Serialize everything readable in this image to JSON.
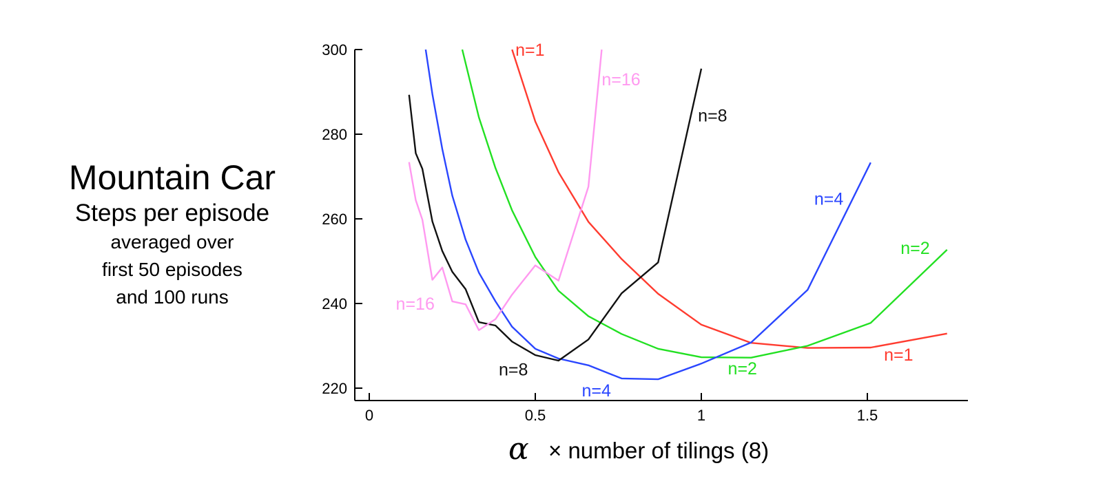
{
  "side_title": {
    "main": "Mountain Car",
    "sub": "Steps per episode",
    "line1": "averaged over",
    "line2": "first 50 episodes",
    "line3": "and 100 runs"
  },
  "chart_data": {
    "type": "line",
    "title": "Mountain Car",
    "ylabel": "Steps per episode averaged over first 50 episodes and 100 runs",
    "xlabel_symbol": "α",
    "xlabel_text": "× number of tilings (8)",
    "xlim": [
      0,
      1.8
    ],
    "ylim": [
      218,
      300
    ],
    "x_ticks": [
      {
        "v": 0,
        "label": "0"
      },
      {
        "v": 0.5,
        "label": "0.5"
      },
      {
        "v": 1,
        "label": "1"
      },
      {
        "v": 1.5,
        "label": "1.5"
      }
    ],
    "y_ticks": [
      {
        "v": 220,
        "label": "220"
      },
      {
        "v": 240,
        "label": "240"
      },
      {
        "v": 260,
        "label": "260"
      },
      {
        "v": 280,
        "label": "280"
      },
      {
        "v": 300,
        "label": "300"
      }
    ],
    "grid": false,
    "series": [
      {
        "name": "n=1",
        "color": "#ff3b2f",
        "x": [
          0.43,
          0.5,
          0.57,
          0.66,
          0.76,
          0.87,
          1.0,
          1.15,
          1.32,
          1.51,
          1.74
        ],
        "y": [
          300,
          283,
          271,
          259.3,
          250.5,
          242.3,
          235,
          230.7,
          229.5,
          229.6,
          232.9
        ],
        "labels": [
          {
            "text": "n=1",
            "x": 0.44,
            "y": 300
          },
          {
            "text": "n=1",
            "x": 1.55,
            "y": 228
          }
        ]
      },
      {
        "name": "n=2",
        "color": "#22e022",
        "x": [
          0.28,
          0.33,
          0.38,
          0.43,
          0.5,
          0.57,
          0.66,
          0.76,
          0.87,
          1.0,
          1.15,
          1.32,
          1.51,
          1.74
        ],
        "y": [
          300,
          284,
          272,
          262,
          251,
          243,
          237,
          232.8,
          229.3,
          227.3,
          227.2,
          230,
          235.4,
          252.7
        ],
        "labels": [
          {
            "text": "n=2",
            "x": 1.08,
            "y": 224.7
          },
          {
            "text": "n=2",
            "x": 1.6,
            "y": 253.2
          }
        ]
      },
      {
        "name": "n=4",
        "color": "#2a46ff",
        "x": [
          0.17,
          0.19,
          0.22,
          0.25,
          0.29,
          0.33,
          0.38,
          0.43,
          0.5,
          0.57,
          0.66,
          0.76,
          0.87,
          1.0,
          1.15,
          1.32,
          1.51
        ],
        "y": [
          300,
          289.5,
          276.5,
          265.5,
          255.1,
          247.3,
          240.5,
          234.5,
          229.3,
          227,
          225.4,
          222.3,
          222.1,
          225.8,
          230.8,
          243.2,
          273.3
        ],
        "labels": [
          {
            "text": "n=4",
            "x": 0.64,
            "y": 219.5
          },
          {
            "text": "n=4",
            "x": 1.34,
            "y": 264.8
          }
        ]
      },
      {
        "name": "n=8",
        "color": "#111111",
        "x": [
          0.12,
          0.14,
          0.16,
          0.19,
          0.22,
          0.25,
          0.29,
          0.33,
          0.38,
          0.43,
          0.5,
          0.57,
          0.66,
          0.76,
          0.87,
          1.0
        ],
        "y": [
          289.3,
          275.5,
          271.8,
          259.4,
          252.4,
          247.5,
          243.4,
          235.6,
          234.8,
          231,
          227.8,
          226.5,
          231.5,
          242.4,
          249.7,
          295.5
        ],
        "labels": [
          {
            "text": "n=8",
            "x": 0.39,
            "y": 224.5
          },
          {
            "text": "n=8",
            "x": 0.99,
            "y": 284.5
          }
        ]
      },
      {
        "name": "n=16",
        "color": "#ff99f0",
        "x": [
          0.12,
          0.14,
          0.16,
          0.19,
          0.22,
          0.25,
          0.29,
          0.33,
          0.38,
          0.43,
          0.5,
          0.57,
          0.66,
          0.7
        ],
        "y": [
          273.4,
          264.4,
          259.8,
          245.6,
          248.5,
          240.5,
          239.8,
          233.7,
          236.3,
          242.1,
          249,
          245.4,
          267.6,
          300
        ],
        "labels": [
          {
            "text": "n=16",
            "x": 0.08,
            "y": 240
          },
          {
            "text": "n=16",
            "x": 0.7,
            "y": 293
          }
        ]
      }
    ]
  }
}
